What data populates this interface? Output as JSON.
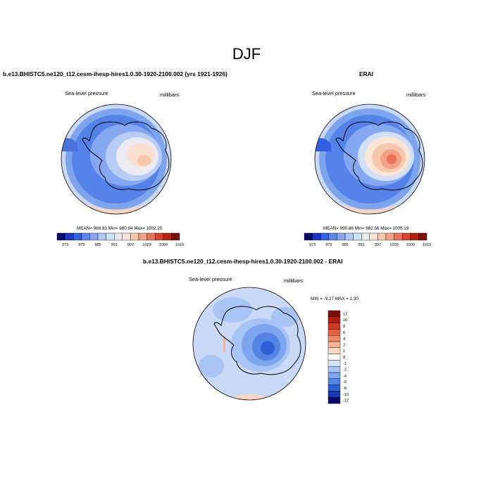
{
  "figure": {
    "title": "DJF"
  },
  "panels": [
    {
      "title": "b.e13.BHISTC5.ne120_t12.cesm-ihesp-hires1.0.30-1920-2100.002 (yrs 1921-1926)",
      "left_label": "Sea-level pressure",
      "right_label": "millibars",
      "stats": "MEAN= 988.93   Min= 980.94   Max= 1002.25",
      "colorbar": {
        "levels": [
          "973",
          "979",
          "985",
          "991",
          "997",
          "1003",
          "1009",
          "1015"
        ],
        "colors": [
          "#0a0a6e",
          "#1f34c8",
          "#3160e0",
          "#5a86ee",
          "#86a8f3",
          "#b0c8f6",
          "#d2dff8",
          "#ece9f2",
          "#fbe5d6",
          "#f7c8ad",
          "#f2a285",
          "#e9735a",
          "#d9442f",
          "#b82314",
          "#7d0d0a"
        ]
      }
    },
    {
      "title": "ERAI",
      "left_label": "Sea-level pressure",
      "right_label": "millibars",
      "stats": "MEAN= 990.86   Min= 982.56   Max= 1005.19",
      "colorbar": {
        "levels": [
          "973",
          "979",
          "985",
          "991",
          "997",
          "1003",
          "1009",
          "1015"
        ],
        "colors": [
          "#0a0a6e",
          "#1f34c8",
          "#3160e0",
          "#5a86ee",
          "#86a8f3",
          "#b0c8f6",
          "#d2dff8",
          "#ece9f2",
          "#fbe5d6",
          "#f7c8ad",
          "#f2a285",
          "#e9735a",
          "#d9442f",
          "#b82314",
          "#7d0d0a"
        ]
      }
    },
    {
      "title": "b.e13.BHISTC5.ne120_t12.cesm-ihesp-hires1.0.30-1920-2100.002 - ERAI",
      "left_label": "Sea-level pressure",
      "right_label": "millibars",
      "stats": "MIN =  -9.27 MAX =   1.30",
      "colorbar": {
        "levels": [
          "12",
          "10",
          "8",
          "6",
          "4",
          "2",
          "1",
          "0",
          "-1",
          "-2",
          "-4",
          "-6",
          "-8",
          "-10",
          "-12"
        ],
        "colors": [
          "#7d0d0a",
          "#b31d10",
          "#d13a22",
          "#e5603f",
          "#ef8a66",
          "#f5b393",
          "#fad7c2",
          "#ffffff",
          "#d4e2fa",
          "#a8c4f5",
          "#7ea6ef",
          "#5484e6",
          "#2c5fd8",
          "#1a36b0",
          "#0a0a6e"
        ]
      }
    }
  ]
}
